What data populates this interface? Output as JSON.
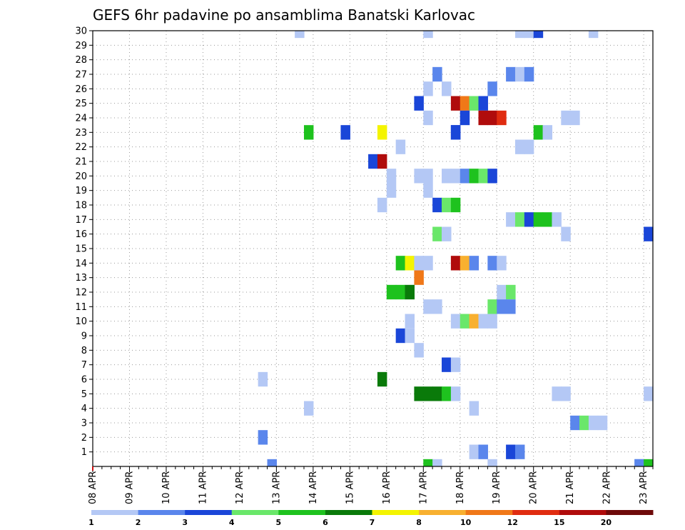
{
  "chart_data": {
    "type": "heatmap",
    "title": "GEFS 6hr padavine po ansamblima Banatski Karlovac",
    "xlabel": "",
    "ylabel": "",
    "x_ticks": [
      "08 APR",
      "09 APR",
      "10 APR",
      "11 APR",
      "12 APR",
      "13 APR",
      "14 APR",
      "15 APR",
      "16 APR",
      "17 APR",
      "18 APR",
      "19 APR",
      "20 APR",
      "21 APR",
      "22 APR",
      "23 APR"
    ],
    "y_ticks": [
      1,
      2,
      3,
      4,
      5,
      6,
      7,
      8,
      9,
      10,
      11,
      12,
      13,
      14,
      15,
      16,
      17,
      18,
      19,
      20,
      21,
      22,
      23,
      24,
      25,
      26,
      27,
      28,
      29,
      30
    ],
    "x_range": [
      "08 APR 00Z",
      "23 APR 06Z"
    ],
    "x_step_hours": 6,
    "y_range": [
      0,
      30
    ],
    "grid": true,
    "colorbar": {
      "labels": [
        "1",
        "2",
        "3",
        "4",
        "5",
        "6",
        "7",
        "8",
        "10",
        "12",
        "15",
        "20"
      ],
      "bounds": [
        1,
        2,
        3,
        4,
        5,
        6,
        7,
        8,
        10,
        12,
        15,
        20
      ],
      "colors": [
        "#b4c8f5",
        "#5a86ec",
        "#1a46d8",
        "#6ae76a",
        "#1ec21e",
        "#0a7a0a",
        "#f4f400",
        "#f8b030",
        "#f07818",
        "#e02c10",
        "#b00c0c",
        "#6e0a0a"
      ]
    },
    "cells": [
      {
        "m": 30,
        "t": "13 APR 12Z",
        "v": 1.5
      },
      {
        "m": 30,
        "t": "17 APR 00Z",
        "v": 1.5
      },
      {
        "m": 30,
        "t": "19 APR 12Z",
        "v": 1.5
      },
      {
        "m": 30,
        "t": "19 APR 18Z",
        "v": 1.5
      },
      {
        "m": 30,
        "t": "20 APR 00Z",
        "v": 3.5
      },
      {
        "m": 30,
        "t": "21 APR 12Z",
        "v": 1.5
      },
      {
        "m": 27,
        "t": "17 APR 06Z",
        "v": 2.5
      },
      {
        "m": 27,
        "t": "19 APR 06Z",
        "v": 2.5
      },
      {
        "m": 27,
        "t": "19 APR 12Z",
        "v": 1.5
      },
      {
        "m": 27,
        "t": "19 APR 18Z",
        "v": 2.5
      },
      {
        "m": 26,
        "t": "17 APR 00Z",
        "v": 1.5
      },
      {
        "m": 26,
        "t": "17 APR 12Z",
        "v": 1.5
      },
      {
        "m": 26,
        "t": "18 APR 18Z",
        "v": 2.5
      },
      {
        "m": 25,
        "t": "16 APR 18Z",
        "v": 3.5
      },
      {
        "m": 25,
        "t": "17 APR 18Z",
        "v": 18
      },
      {
        "m": 25,
        "t": "18 APR 00Z",
        "v": 11
      },
      {
        "m": 25,
        "t": "18 APR 06Z",
        "v": 4.5
      },
      {
        "m": 25,
        "t": "18 APR 12Z",
        "v": 3.5
      },
      {
        "m": 24,
        "t": "17 APR 00Z",
        "v": 1.5
      },
      {
        "m": 24,
        "t": "18 APR 00Z",
        "v": 3.5
      },
      {
        "m": 24,
        "t": "18 APR 12Z",
        "v": 17
      },
      {
        "m": 24,
        "t": "18 APR 18Z",
        "v": 17
      },
      {
        "m": 24,
        "t": "19 APR 00Z",
        "v": 13
      },
      {
        "m": 24,
        "t": "20 APR 18Z",
        "v": 1.5
      },
      {
        "m": 24,
        "t": "21 APR 00Z",
        "v": 1.5
      },
      {
        "m": 23,
        "t": "13 APR 18Z",
        "v": 5.5
      },
      {
        "m": 23,
        "t": "14 APR 18Z",
        "v": 3.5
      },
      {
        "m": 23,
        "t": "15 APR 18Z",
        "v": 7.5
      },
      {
        "m": 23,
        "t": "17 APR 18Z",
        "v": 3.5
      },
      {
        "m": 23,
        "t": "17 APR 18Z",
        "v": 3.5
      },
      {
        "m": 23,
        "t": "20 APR 00Z",
        "v": 5.5
      },
      {
        "m": 23,
        "t": "20 APR 06Z",
        "v": 1.5
      },
      {
        "m": 22,
        "t": "16 APR 06Z",
        "v": 1.5
      },
      {
        "m": 22,
        "t": "19 APR 12Z",
        "v": 1.5
      },
      {
        "m": 22,
        "t": "19 APR 18Z",
        "v": 1.5
      },
      {
        "m": 21,
        "t": "15 APR 12Z",
        "v": 3.5
      },
      {
        "m": 21,
        "t": "15 APR 18Z",
        "v": 18
      },
      {
        "m": 20,
        "t": "16 APR 00Z",
        "v": 1.5
      },
      {
        "m": 20,
        "t": "16 APR 18Z",
        "v": 1.5
      },
      {
        "m": 20,
        "t": "17 APR 00Z",
        "v": 1.5
      },
      {
        "m": 20,
        "t": "17 APR 12Z",
        "v": 1.5
      },
      {
        "m": 20,
        "t": "17 APR 18Z",
        "v": 1.5
      },
      {
        "m": 20,
        "t": "18 APR 00Z",
        "v": 2.5
      },
      {
        "m": 20,
        "t": "18 APR 06Z",
        "v": 5.5
      },
      {
        "m": 20,
        "t": "18 APR 12Z",
        "v": 4.5
      },
      {
        "m": 20,
        "t": "18 APR 18Z",
        "v": 3.5
      },
      {
        "m": 19,
        "t": "16 APR 00Z",
        "v": 1.5
      },
      {
        "m": 19,
        "t": "17 APR 00Z",
        "v": 1.5
      },
      {
        "m": 18,
        "t": "15 APR 18Z",
        "v": 1.5
      },
      {
        "m": 18,
        "t": "17 APR 06Z",
        "v": 3.5
      },
      {
        "m": 18,
        "t": "17 APR 12Z",
        "v": 4.5
      },
      {
        "m": 18,
        "t": "17 APR 18Z",
        "v": 5.5
      },
      {
        "m": 17,
        "t": "19 APR 06Z",
        "v": 1.5
      },
      {
        "m": 17,
        "t": "19 APR 12Z",
        "v": 4.5
      },
      {
        "m": 17,
        "t": "19 APR 18Z",
        "v": 3.5
      },
      {
        "m": 17,
        "t": "20 APR 00Z",
        "v": 5.5
      },
      {
        "m": 17,
        "t": "20 APR 06Z",
        "v": 5.5
      },
      {
        "m": 17,
        "t": "20 APR 12Z",
        "v": 1.5
      },
      {
        "m": 16,
        "t": "17 APR 06Z",
        "v": 4.5
      },
      {
        "m": 16,
        "t": "17 APR 12Z",
        "v": 1.5
      },
      {
        "m": 16,
        "t": "20 APR 18Z",
        "v": 1.5
      },
      {
        "m": 16,
        "t": "23 APR 00Z",
        "v": 3.5
      },
      {
        "m": 14,
        "t": "16 APR 06Z",
        "v": 5.5
      },
      {
        "m": 14,
        "t": "16 APR 12Z",
        "v": 7.5
      },
      {
        "m": 14,
        "t": "16 APR 18Z",
        "v": 1.5
      },
      {
        "m": 14,
        "t": "17 APR 00Z",
        "v": 1.5
      },
      {
        "m": 14,
        "t": "17 APR 18Z",
        "v": 18
      },
      {
        "m": 14,
        "t": "18 APR 00Z",
        "v": 9
      },
      {
        "m": 14,
        "t": "18 APR 06Z",
        "v": 2.5
      },
      {
        "m": 14,
        "t": "18 APR 18Z",
        "v": 2.5
      },
      {
        "m": 14,
        "t": "19 APR 00Z",
        "v": 1.5
      },
      {
        "m": 13,
        "t": "16 APR 18Z",
        "v": 11
      },
      {
        "m": 12,
        "t": "16 APR 00Z",
        "v": 5.5
      },
      {
        "m": 12,
        "t": "16 APR 06Z",
        "v": 5.5
      },
      {
        "m": 12,
        "t": "16 APR 12Z",
        "v": 6.5
      },
      {
        "m": 12,
        "t": "19 APR 00Z",
        "v": 1.5
      },
      {
        "m": 12,
        "t": "19 APR 06Z",
        "v": 4.5
      },
      {
        "m": 11,
        "t": "17 APR 00Z",
        "v": 1.5
      },
      {
        "m": 11,
        "t": "17 APR 06Z",
        "v": 1.5
      },
      {
        "m": 11,
        "t": "18 APR 18Z",
        "v": 4.5
      },
      {
        "m": 11,
        "t": "19 APR 00Z",
        "v": 2.5
      },
      {
        "m": 11,
        "t": "19 APR 06Z",
        "v": 2.5
      },
      {
        "m": 10,
        "t": "16 APR 12Z",
        "v": 1.5
      },
      {
        "m": 10,
        "t": "17 APR 18Z",
        "v": 1.5
      },
      {
        "m": 10,
        "t": "18 APR 00Z",
        "v": 4.5
      },
      {
        "m": 10,
        "t": "18 APR 06Z",
        "v": 9
      },
      {
        "m": 10,
        "t": "18 APR 12Z",
        "v": 1.5
      },
      {
        "m": 10,
        "t": "18 APR 18Z",
        "v": 1.5
      },
      {
        "m": 9,
        "t": "16 APR 06Z",
        "v": 3.5
      },
      {
        "m": 9,
        "t": "16 APR 12Z",
        "v": 1.5
      },
      {
        "m": 8,
        "t": "16 APR 18Z",
        "v": 1.5
      },
      {
        "m": 7,
        "t": "17 APR 12Z",
        "v": 3.5
      },
      {
        "m": 7,
        "t": "17 APR 18Z",
        "v": 1.5
      },
      {
        "m": 6,
        "t": "12 APR 12Z",
        "v": 1.5
      },
      {
        "m": 6,
        "t": "15 APR 18Z",
        "v": 6.5
      },
      {
        "m": 5,
        "t": "16 APR 18Z",
        "v": 6.5
      },
      {
        "m": 5,
        "t": "17 APR 00Z",
        "v": 6.5
      },
      {
        "m": 5,
        "t": "17 APR 06Z",
        "v": 6.5
      },
      {
        "m": 5,
        "t": "17 APR 12Z",
        "v": 5.5
      },
      {
        "m": 5,
        "t": "17 APR 18Z",
        "v": 1.5
      },
      {
        "m": 5,
        "t": "20 APR 12Z",
        "v": 1.5
      },
      {
        "m": 5,
        "t": "20 APR 18Z",
        "v": 1.5
      },
      {
        "m": 5,
        "t": "23 APR 00Z",
        "v": 1.5
      },
      {
        "m": 4,
        "t": "13 APR 18Z",
        "v": 1.5
      },
      {
        "m": 4,
        "t": "18 APR 06Z",
        "v": 1.5
      },
      {
        "m": 3,
        "t": "21 APR 00Z",
        "v": 2.5
      },
      {
        "m": 3,
        "t": "21 APR 06Z",
        "v": 4.5
      },
      {
        "m": 3,
        "t": "21 APR 12Z",
        "v": 1.5
      },
      {
        "m": 3,
        "t": "21 APR 18Z",
        "v": 1.5
      },
      {
        "m": 2,
        "t": "12 APR 12Z",
        "v": 2.5
      },
      {
        "m": 1,
        "t": "18 APR 06Z",
        "v": 1.5
      },
      {
        "m": 1,
        "t": "18 APR 12Z",
        "v": 2.5
      },
      {
        "m": 1,
        "t": "19 APR 06Z",
        "v": 3.5
      },
      {
        "m": 1,
        "t": "19 APR 12Z",
        "v": 2.5
      },
      {
        "m": 0,
        "t": "12 APR 18Z",
        "v": 2.5
      },
      {
        "m": 0,
        "t": "17 APR 00Z",
        "v": 5.5
      },
      {
        "m": 0,
        "t": "17 APR 06Z",
        "v": 1.5
      },
      {
        "m": 0,
        "t": "18 APR 18Z",
        "v": 1.5
      },
      {
        "m": 0,
        "t": "22 APR 18Z",
        "v": 2.5
      },
      {
        "m": 0,
        "t": "22 APR 18Z",
        "v": 2.5
      },
      {
        "m": 0,
        "t": "23 APR 00Z",
        "v": 5.5
      }
    ]
  }
}
